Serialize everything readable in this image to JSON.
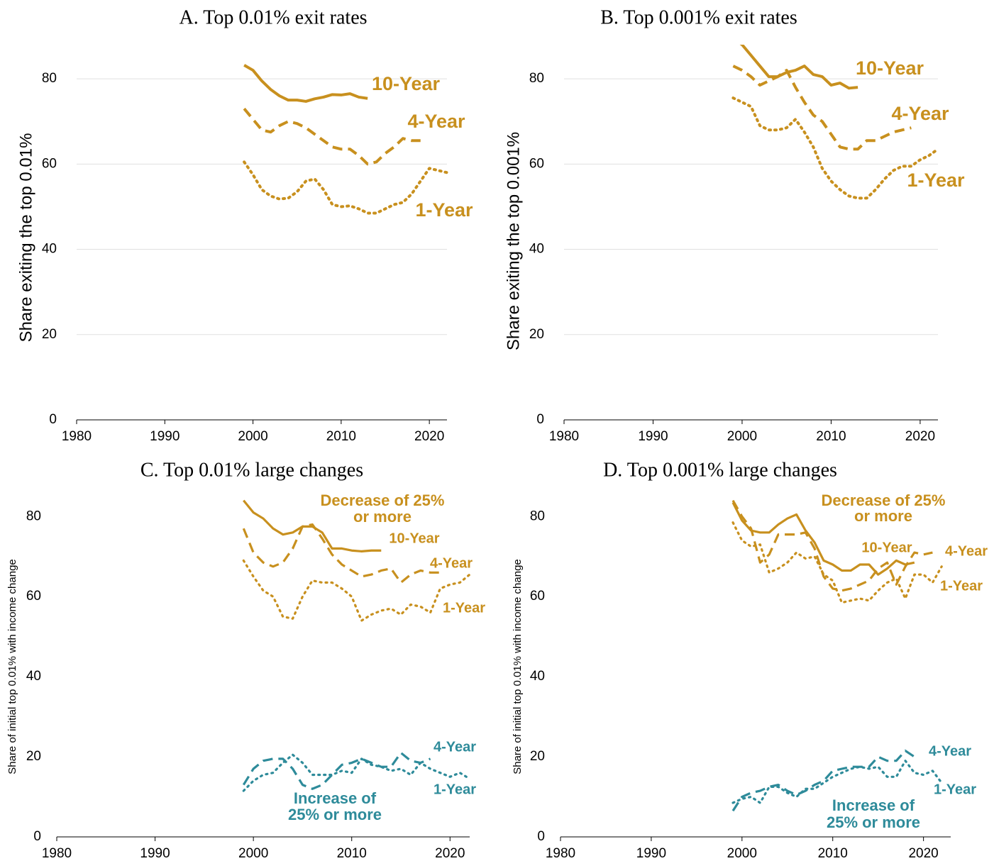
{
  "chart_data": [
    {
      "type": "line",
      "title": "A. Top 0.01% exit rates",
      "y_label": "Share exiting the top 0.01%",
      "xlim": [
        1980,
        2022
      ],
      "xticks": [
        1980,
        1990,
        2000,
        2010,
        2020
      ],
      "ylim": [
        0,
        88
      ],
      "yticks": [
        0,
        20,
        40,
        60,
        80
      ],
      "grid": true,
      "series": [
        {
          "name": "10-Year",
          "color": "#c8901e",
          "style": "solid",
          "x": [
            1999,
            2000,
            2001,
            2002,
            2003,
            2004,
            2005,
            2006,
            2007,
            2008,
            2009,
            2010,
            2011,
            2012,
            2013
          ],
          "values": [
            83.2,
            82,
            79.5,
            77.5,
            76,
            75,
            75,
            74.7,
            75.3,
            75.7,
            76.3,
            76.2,
            76.5,
            75.7,
            75.4
          ]
        },
        {
          "name": "4-Year",
          "color": "#c8901e",
          "style": "dashed",
          "x": [
            1999,
            2000,
            2001,
            2002,
            2003,
            2004,
            2005,
            2006,
            2007,
            2008,
            2009,
            2010,
            2011,
            2012,
            2013,
            2014,
            2015,
            2016,
            2017,
            2018,
            2019
          ],
          "values": [
            73,
            70.5,
            68,
            67.5,
            69,
            70,
            69.5,
            68.5,
            67,
            65.5,
            64,
            63.5,
            63.5,
            62,
            60,
            60.5,
            62.5,
            64,
            66,
            65.5,
            65.5
          ]
        },
        {
          "name": "1-Year",
          "color": "#c8901e",
          "style": "dotted",
          "x": [
            1999,
            2000,
            2001,
            2002,
            2003,
            2004,
            2005,
            2006,
            2007,
            2008,
            2009,
            2010,
            2011,
            2012,
            2013,
            2014,
            2015,
            2016,
            2017,
            2018,
            2019,
            2020,
            2021,
            2022
          ],
          "values": [
            60.5,
            57.5,
            54,
            52.5,
            51.8,
            52,
            53.5,
            56,
            56.5,
            54,
            50.5,
            50,
            50.2,
            49.5,
            48.5,
            48.5,
            49.5,
            50.5,
            51,
            53,
            56,
            59,
            58.5,
            58
          ]
        }
      ]
    },
    {
      "type": "line",
      "title": "B. Top 0.001% exit rates",
      "y_label": "Share exiting the top 0.001%",
      "xlim": [
        1980,
        2022
      ],
      "xticks": [
        1980,
        1990,
        2000,
        2010,
        2020
      ],
      "ylim": [
        0,
        88
      ],
      "yticks": [
        0,
        20,
        40,
        60,
        80
      ],
      "grid": true,
      "series": [
        {
          "name": "10-Year",
          "color": "#c8901e",
          "style": "solid",
          "x": [
            1999,
            2000,
            2001,
            2002,
            2003,
            2004,
            2005,
            2006,
            2007,
            2008,
            2009,
            2010,
            2011,
            2012,
            2013
          ],
          "values": [
            89.5,
            88,
            85.5,
            83,
            80.5,
            80.5,
            81.5,
            82,
            83,
            81,
            80.5,
            78.5,
            79,
            77.8,
            78
          ]
        },
        {
          "name": "4-Year",
          "color": "#c8901e",
          "style": "dashed",
          "x": [
            1999,
            2000,
            2001,
            2002,
            2003,
            2004,
            2005,
            2006,
            2007,
            2008,
            2009,
            2010,
            2011,
            2012,
            2013,
            2014,
            2015,
            2016,
            2017,
            2018,
            2019
          ],
          "values": [
            83,
            82,
            80.5,
            78.5,
            79.5,
            80.5,
            82,
            78,
            74.5,
            71.5,
            70,
            67,
            64,
            63.5,
            63.5,
            65.5,
            65.5,
            66.5,
            67.5,
            68,
            68.5
          ]
        },
        {
          "name": "1-Year",
          "color": "#c8901e",
          "style": "dotted",
          "x": [
            1999,
            2000,
            2001,
            2002,
            2003,
            2004,
            2005,
            2006,
            2007,
            2008,
            2009,
            2010,
            2011,
            2012,
            2013,
            2014,
            2015,
            2016,
            2017,
            2018,
            2019,
            2020,
            2021,
            2022
          ],
          "values": [
            75.5,
            74.5,
            73.5,
            69,
            68,
            68,
            68.5,
            70.5,
            67.5,
            64,
            59,
            56,
            54,
            52.5,
            52,
            52,
            54,
            56.5,
            58.5,
            59.5,
            59.5,
            61,
            62,
            63.5
          ]
        }
      ]
    },
    {
      "type": "line",
      "title": "C. Top 0.01% large changes",
      "y_label": "Share of initial top 0.01% with income change",
      "xlim": [
        1980,
        2022
      ],
      "xticks": [
        1980,
        1990,
        2000,
        2010,
        2020
      ],
      "ylim": [
        0,
        85
      ],
      "yticks": [
        0,
        20,
        40,
        60,
        80
      ],
      "grid": false,
      "annotations": [
        {
          "lines": [
            "Decrease of 25%",
            "or more"
          ],
          "color": "#c8901e"
        },
        {
          "lines": [
            "Increase of",
            "25% or more"
          ],
          "color": "#2e8b9a"
        }
      ],
      "series": [
        {
          "name": "10-Year",
          "color": "#c8901e",
          "style": "solid",
          "x": [
            1999,
            2000,
            2001,
            2002,
            2003,
            2004,
            2005,
            2006,
            2007,
            2008,
            2009,
            2010,
            2011,
            2012,
            2013
          ],
          "values": [
            84,
            81,
            79.5,
            77,
            75.5,
            76,
            77.5,
            77.5,
            76,
            72,
            72,
            71.5,
            71.3,
            71.5,
            71.5
          ]
        },
        {
          "name": "4-Year",
          "color": "#c8901e",
          "style": "dashed",
          "x": [
            1999,
            2000,
            2001,
            2002,
            2003,
            2004,
            2005,
            2006,
            2007,
            2008,
            2009,
            2010,
            2011,
            2012,
            2013,
            2014,
            2015,
            2016,
            2017,
            2018,
            2019
          ],
          "values": [
            77,
            71,
            68.5,
            67.5,
            68.5,
            72,
            77.5,
            78,
            74.5,
            70.5,
            68,
            66.5,
            65,
            65.5,
            66.5,
            67,
            63.5,
            65.5,
            66.5,
            66,
            66
          ]
        },
        {
          "name": "1-Year",
          "color": "#c8901e",
          "style": "dotted",
          "x": [
            1999,
            2000,
            2001,
            2002,
            2003,
            2004,
            2005,
            2006,
            2007,
            2008,
            2009,
            2010,
            2011,
            2012,
            2013,
            2014,
            2015,
            2016,
            2017,
            2018,
            2019,
            2020,
            2021,
            2022
          ],
          "values": [
            69,
            65,
            61.5,
            60,
            55,
            54.5,
            60,
            64,
            63.5,
            63.5,
            62,
            60,
            54,
            55.5,
            56.5,
            57,
            55.5,
            58,
            57.5,
            56,
            62,
            63,
            63.5,
            65.5
          ]
        },
        {
          "name": "4-Year",
          "color": "#2e8b9a",
          "style": "dashed",
          "x": [
            1999,
            2000,
            2001,
            2002,
            2003,
            2004,
            2005,
            2006,
            2007,
            2008,
            2009,
            2010,
            2011,
            2012,
            2013,
            2014,
            2015,
            2016,
            2017,
            2018
          ],
          "values": [
            13,
            17,
            19,
            19.5,
            19.5,
            17,
            13,
            12,
            13,
            15.5,
            18,
            18.5,
            19.5,
            18.5,
            17.5,
            17.5,
            21,
            19,
            18.5,
            19.5
          ]
        },
        {
          "name": "1-Year",
          "color": "#2e8b9a",
          "style": "dotted",
          "x": [
            1999,
            2000,
            2001,
            2002,
            2003,
            2004,
            2005,
            2006,
            2007,
            2008,
            2009,
            2010,
            2011,
            2012,
            2013,
            2014,
            2015,
            2016,
            2017,
            2018,
            2019,
            2020,
            2021,
            2022
          ],
          "values": [
            11.5,
            14,
            15.5,
            16,
            18.5,
            20.5,
            18.5,
            15.5,
            15.5,
            15.5,
            16.5,
            16,
            19.5,
            18,
            17.5,
            16.5,
            17,
            15.5,
            18.5,
            17,
            16,
            15,
            16,
            14.5
          ]
        }
      ]
    },
    {
      "type": "line",
      "title": "D. Top 0.001% large changes",
      "y_label": "Share of initial top 0.01% with income change",
      "xlim": [
        1980,
        2023
      ],
      "xticks": [
        1980,
        1990,
        2000,
        2010,
        2020
      ],
      "ylim": [
        0,
        85
      ],
      "yticks": [
        0,
        20,
        40,
        60,
        80
      ],
      "grid": false,
      "annotations": [
        {
          "lines": [
            "Decrease of 25%",
            "or more"
          ],
          "color": "#c8901e"
        },
        {
          "lines": [
            "Increase of",
            "25% or more"
          ],
          "color": "#2e8b9a"
        }
      ],
      "series": [
        {
          "name": "10-Year",
          "color": "#c8901e",
          "style": "solid",
          "x": [
            1999,
            2000,
            2001,
            2002,
            2003,
            2004,
            2005,
            2006,
            2007,
            2008,
            2009,
            2010,
            2011,
            2012,
            2013,
            2014,
            2015,
            2016,
            2017,
            2018,
            2019
          ],
          "values": [
            83.5,
            79,
            76.5,
            76,
            76,
            78,
            79.5,
            80.5,
            76.5,
            73.5,
            69,
            68,
            66.5,
            66.5,
            68,
            68,
            65.5,
            67,
            69,
            68,
            68.5
          ]
        },
        {
          "name": "4-Year",
          "color": "#c8901e",
          "style": "dashed",
          "x": [
            1999,
            2000,
            2001,
            2002,
            2003,
            2004,
            2005,
            2006,
            2007,
            2008,
            2009,
            2010,
            2011,
            2012,
            2013,
            2014,
            2015,
            2016,
            2017,
            2018,
            2019,
            2020,
            2021
          ],
          "values": [
            84,
            80,
            77,
            68.5,
            70.5,
            75.5,
            75.5,
            75.5,
            76,
            72,
            65,
            62,
            61.5,
            62,
            63,
            64,
            67,
            68.5,
            63,
            67.5,
            71,
            70.5,
            71
          ]
        },
        {
          "name": "1-Year",
          "color": "#c8901e",
          "style": "dotted",
          "x": [
            1999,
            2000,
            2001,
            2002,
            2003,
            2004,
            2005,
            2006,
            2007,
            2008,
            2009,
            2010,
            2011,
            2012,
            2013,
            2014,
            2015,
            2016,
            2017,
            2018,
            2019,
            2020,
            2021,
            2022
          ],
          "values": [
            78.5,
            74,
            72.5,
            73,
            66,
            67,
            68.5,
            71,
            69.5,
            70,
            65.5,
            64,
            58.5,
            59,
            59.5,
            59,
            61.5,
            63.5,
            64.5,
            59.5,
            65.5,
            65.5,
            63.5,
            67.5
          ]
        },
        {
          "name": "4-Year",
          "color": "#2e8b9a",
          "style": "dashed",
          "x": [
            1999,
            2000,
            2001,
            2002,
            2003,
            2004,
            2005,
            2006,
            2007,
            2008,
            2009,
            2010,
            2011,
            2012,
            2013,
            2014,
            2015,
            2016,
            2017,
            2018,
            2019
          ],
          "values": [
            6.5,
            10,
            11,
            11.5,
            12.5,
            13,
            11.5,
            10.5,
            11.5,
            13,
            14,
            16.5,
            17,
            17.5,
            17.5,
            17.5,
            20,
            19,
            19,
            21.5,
            20
          ]
        },
        {
          "name": "1-Year",
          "color": "#2e8b9a",
          "style": "dotted",
          "x": [
            1999,
            2000,
            2001,
            2002,
            2003,
            2004,
            2005,
            2006,
            2007,
            2008,
            2009,
            2010,
            2011,
            2012,
            2013,
            2014,
            2015,
            2016,
            2017,
            2018,
            2019,
            2020,
            2021,
            2022
          ],
          "values": [
            8.5,
            9.5,
            10,
            8.5,
            12.5,
            12.5,
            11,
            10,
            12,
            12,
            13.5,
            15,
            16,
            17,
            17.5,
            17,
            17.5,
            15,
            15,
            19,
            16,
            15.5,
            16.5,
            13.5
          ]
        }
      ]
    }
  ]
}
